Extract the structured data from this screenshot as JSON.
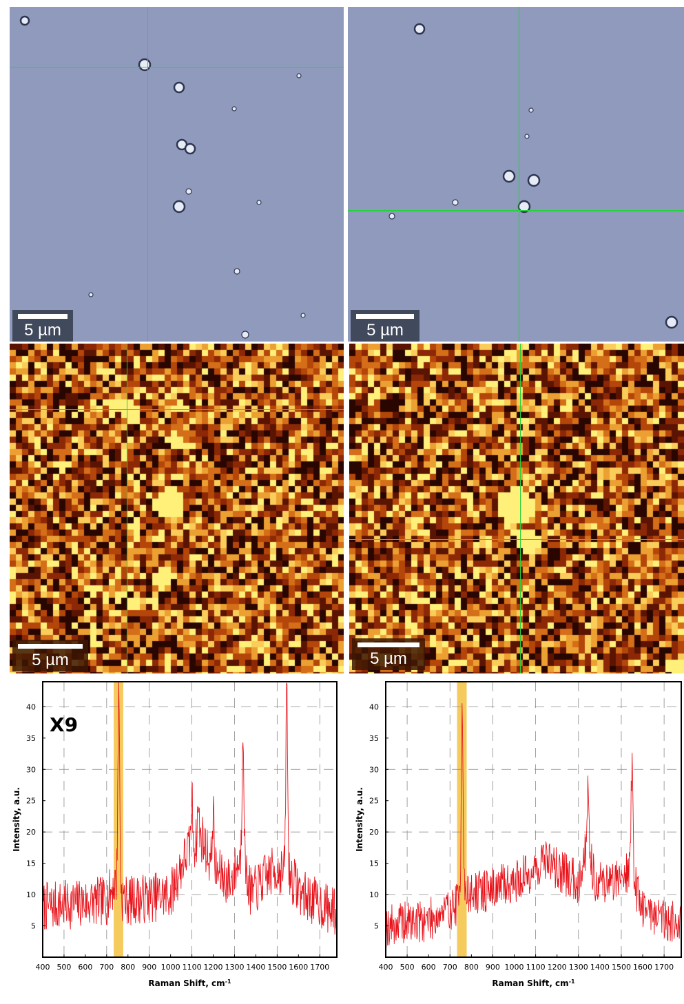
{
  "panels": {
    "scale_bar_label": "5 µm",
    "optical": [
      {
        "crosshair_x_fraction": 0.412,
        "crosshair_y_fraction": 0.178
      },
      {
        "crosshair_x_fraction": 0.508,
        "crosshair_y_fraction": 0.607
      }
    ],
    "raman_maps": [
      {
        "crosshair_x_fraction": 0.35,
        "crosshair_y_fraction": 0.198
      },
      {
        "crosshair_x_fraction": 0.51,
        "crosshair_y_fraction": 0.592
      }
    ]
  },
  "colors": {
    "crosshair": "#22d33a",
    "spectrum_line": "#e8141c",
    "highlight_band": "#f5c242",
    "map_low": "#2a0600",
    "map_high": "#fff07a"
  },
  "chart_data": [
    {
      "type": "line",
      "annotation": "X9",
      "xlabel": "Raman Shift, cm",
      "xlabel_superscript": "-1",
      "ylabel": "Intensity, a.u.",
      "xlim": [
        400,
        1780
      ],
      "ylim": [
        0,
        44
      ],
      "xticks": [
        "400",
        "500",
        "600",
        "700",
        "800",
        "900",
        "1000",
        "1100",
        "1200",
        "1300",
        "1400",
        "1500",
        "1600",
        "1700"
      ],
      "yticks": [
        "5",
        "10",
        "15",
        "20",
        "25",
        "30",
        "35",
        "40"
      ],
      "highlight_band": [
        733,
        778
      ],
      "grid": true,
      "baseline": [
        [
          400,
          8
        ],
        [
          700,
          9
        ],
        [
          740,
          12
        ],
        [
          760,
          10
        ],
        [
          800,
          9
        ],
        [
          1000,
          10
        ],
        [
          1080,
          17
        ],
        [
          1150,
          19
        ],
        [
          1200,
          14
        ],
        [
          1280,
          12
        ],
        [
          1330,
          16
        ],
        [
          1380,
          10
        ],
        [
          1450,
          13
        ],
        [
          1500,
          14
        ],
        [
          1560,
          13
        ],
        [
          1620,
          10
        ],
        [
          1780,
          7
        ]
      ],
      "peaks": [
        [
          757,
          43
        ],
        [
          1100,
          25
        ],
        [
          1130,
          24
        ],
        [
          1200,
          23
        ],
        [
          1340,
          38
        ],
        [
          1545,
          43
        ]
      ],
      "noise_amplitude": 4
    },
    {
      "type": "line",
      "xlabel": "Raman Shift, cm",
      "xlabel_superscript": "-1",
      "ylabel": "Intensity, a.u.",
      "xlim": [
        400,
        1780
      ],
      "ylim": [
        0,
        44
      ],
      "xticks": [
        "400",
        "500",
        "600",
        "700",
        "800",
        "900",
        "1000",
        "1100",
        "1200",
        "1300",
        "1400",
        "1500",
        "1600",
        "1700"
      ],
      "yticks": [
        "5",
        "10",
        "15",
        "20",
        "25",
        "30",
        "35",
        "40"
      ],
      "highlight_band": [
        733,
        778
      ],
      "grid": true,
      "baseline": [
        [
          400,
          5
        ],
        [
          600,
          6
        ],
        [
          720,
          8
        ],
        [
          760,
          10
        ],
        [
          800,
          10
        ],
        [
          1000,
          12
        ],
        [
          1100,
          14
        ],
        [
          1150,
          16
        ],
        [
          1200,
          14
        ],
        [
          1300,
          12
        ],
        [
          1340,
          18
        ],
        [
          1380,
          12
        ],
        [
          1450,
          12
        ],
        [
          1540,
          14
        ],
        [
          1600,
          8
        ],
        [
          1780,
          5
        ]
      ],
      "peaks": [
        [
          757,
          41
        ],
        [
          1345,
          28
        ],
        [
          1550,
          31
        ]
      ],
      "noise_amplitude": 3.5
    }
  ]
}
